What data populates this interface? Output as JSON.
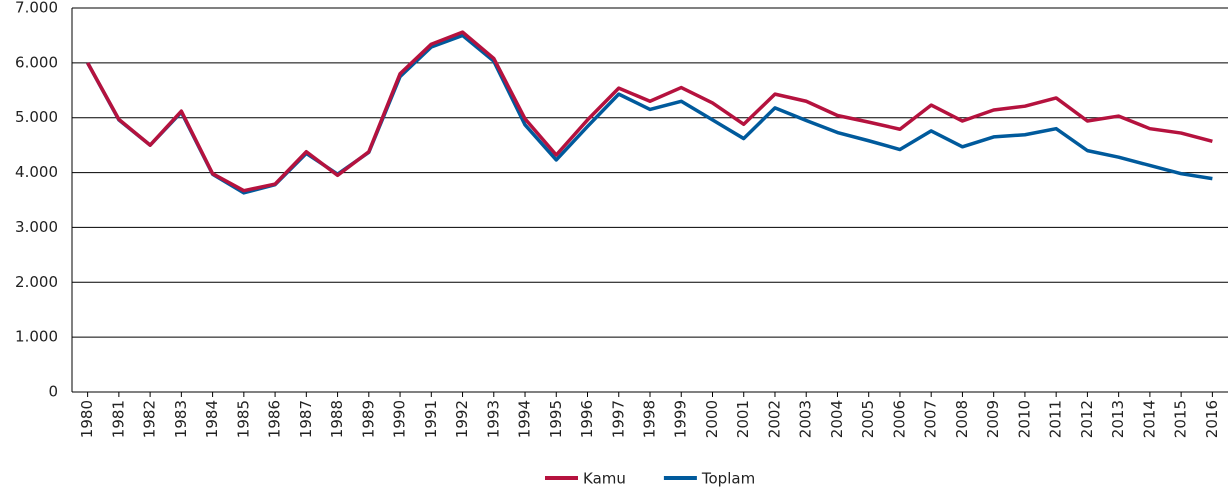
{
  "chart_data": {
    "type": "line",
    "categories": [
      "1980",
      "1981",
      "1982",
      "1983",
      "1984",
      "1985",
      "1986",
      "1987",
      "1988",
      "1989",
      "1990",
      "1991",
      "1992",
      "1993",
      "1994",
      "1995",
      "1996",
      "1997",
      "1998",
      "1999",
      "2000",
      "2001",
      "2002",
      "2003",
      "2004",
      "2005",
      "2006",
      "2007",
      "2008",
      "2009",
      "2010",
      "2011",
      "2012",
      "2013",
      "2014",
      "2015",
      "2016"
    ],
    "series": [
      {
        "name": "Kamu",
        "color": "#b5123e",
        "values": [
          6000,
          4970,
          4500,
          5120,
          3980,
          3670,
          3790,
          4380,
          3950,
          4380,
          5800,
          6340,
          6560,
          6080,
          4980,
          4320,
          4960,
          5540,
          5300,
          5550,
          5270,
          4880,
          5430,
          5300,
          5040,
          4920,
          4790,
          5230,
          4940,
          5140,
          5210,
          5360,
          4940,
          5030,
          4800,
          4720,
          4570
        ]
      },
      {
        "name": "Toplam",
        "color": "#005a9c",
        "values": [
          6000,
          4960,
          4500,
          5100,
          3970,
          3630,
          3780,
          4350,
          3970,
          4370,
          5750,
          6290,
          6500,
          6030,
          4870,
          4230,
          4840,
          5430,
          5150,
          5300,
          4960,
          4620,
          5180,
          4950,
          4730,
          4580,
          4420,
          4760,
          4470,
          4650,
          4690,
          4800,
          4400,
          4280,
          4130,
          3980,
          3890
        ]
      }
    ],
    "ylim": [
      0,
      7000
    ],
    "yticks": [
      0,
      {
        "value": 1000,
        "label": "1.000"
      },
      {
        "value": 2000,
        "label": "2.000"
      },
      {
        "value": 3000,
        "label": "3.000"
      },
      {
        "value": 4000,
        "label": "4.000"
      },
      {
        "value": 5000,
        "label": "5.000"
      },
      {
        "value": 6000,
        "label": "6.000"
      },
      {
        "value": 7000,
        "label": "7.000"
      }
    ],
    "grid": true,
    "legend": "bottom"
  }
}
